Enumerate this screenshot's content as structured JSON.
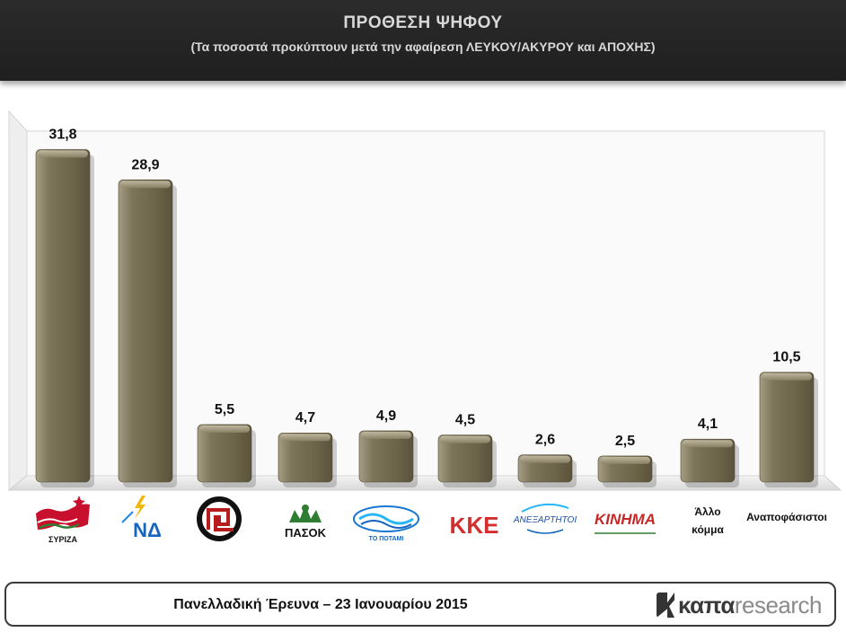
{
  "header": {
    "title": "ΠΡΟΘΕΣΗ ΨΗΦΟΥ",
    "subtitle": "(Τα ποσοστά προκύπτουν μετά την αφαίρεση ΛΕΥΚΟΥ/ΑΚΥΡΟΥ και ΑΠΟΧΗΣ)"
  },
  "chart_data": {
    "type": "bar",
    "title": "ΠΡΟΘΕΣΗ ΨΗΦΟΥ",
    "subtitle": "(Τα ποσοστά προκύπτουν μετά την αφαίρεση ΛΕΥΚΟΥ/ΑΚΥΡΟΥ και ΑΠΟΧΗΣ)",
    "categories": [
      "ΣΥΡΙΖΑ",
      "ΝΔ",
      "ΧΑ",
      "ΠΑΣΟΚ",
      "ΤΟ ΠΟΤΑΜΙ",
      "ΚΚΕ",
      "ΑΝΕΞΑΡΤΗΤΟΙ ΕΛΛΗΝΕΣ",
      "ΚΙΝΗΜΑ",
      "Άλλο κόμμα",
      "Αναποφάσιστοι"
    ],
    "values": [
      31.8,
      28.9,
      5.5,
      4.7,
      4.9,
      4.5,
      2.6,
      2.5,
      4.1,
      10.5
    ],
    "value_labels": [
      "31,8",
      "28,9",
      "5,5",
      "4,7",
      "4,9",
      "4,5",
      "2,6",
      "2,5",
      "4,1",
      "10,5"
    ],
    "logo_texts": [
      "ΣΥΡΙΖΑ",
      "ΝΔ",
      "",
      "ΠΑΣΟΚ",
      "ΤΟ ΠΟΤΑΜΙ",
      "ΚΚΕ",
      "ΑΝΕΞΑΡΤΗΤΟΙ",
      "ΚΙΝΗΜΑ",
      "",
      ""
    ],
    "text_labels": [
      "",
      "",
      "",
      "",
      "",
      "",
      "",
      "",
      "Άλλο\nκόμμα",
      "Αναποφάσιστοι"
    ],
    "ylim": [
      0,
      35
    ],
    "bar_color": "#7a7258",
    "grid": false,
    "legend": "none",
    "xlabel": "",
    "ylabel": ""
  },
  "footer": {
    "survey": "Πανελλαδική Έρευνα – 23 Ιανουαρίου 2015",
    "brand_bold": "καπα",
    "brand_light": "research"
  },
  "colors": {
    "header_bg": "#252525",
    "header_text": "#d8d8d8",
    "bar": "#7a7258"
  }
}
